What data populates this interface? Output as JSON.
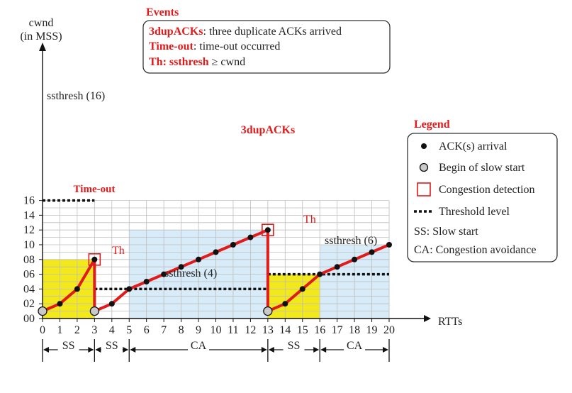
{
  "axes": {
    "y_title_line1": "cwnd",
    "y_title_line2": "(in MSS)",
    "x_title": "RTTs",
    "y_ticks": [
      "00",
      "02",
      "04",
      "06",
      "08",
      "10",
      "12",
      "14",
      "16"
    ],
    "x_ticks": [
      "0",
      "1",
      "2",
      "3",
      "4",
      "5",
      "6",
      "7",
      "8",
      "9",
      "10",
      "11",
      "12",
      "13",
      "14",
      "15",
      "16",
      "17",
      "18",
      "19",
      "20"
    ]
  },
  "events": {
    "title": "Events",
    "items": [
      {
        "key": "3dupACKs",
        "desc": ": three duplicate ACKs arrived"
      },
      {
        "key": "Time-out",
        "desc": ": time-out occurred"
      },
      {
        "key": "Th: ssthresh",
        "desc": " ≥  cwnd"
      }
    ]
  },
  "legend": {
    "title": "Legend",
    "items": [
      {
        "icon": "black-dot",
        "label": "ACK(s) arrival"
      },
      {
        "icon": "gray-circle",
        "label": "Begin of slow start"
      },
      {
        "icon": "red-square",
        "label": "Congestion detection"
      },
      {
        "icon": "dotted-line",
        "label": "Threshold level"
      },
      {
        "icon": "text",
        "key": "SS:",
        "label": "Slow start"
      },
      {
        "icon": "text",
        "key": "CA:",
        "label": "Congestion avoidance"
      }
    ]
  },
  "annotations": {
    "timeout": "Time-out",
    "dupacks": "3dupACKs",
    "th1": "Th",
    "th2": "Th",
    "ssthresh16": "ssthresh (16)",
    "ssthresh4": "ssthresh (4)",
    "ssthresh6": "ssthresh (6)"
  },
  "phases": [
    {
      "label": "SS",
      "from": 0,
      "to": 3
    },
    {
      "label": "SS",
      "from": 3,
      "to": 5
    },
    {
      "label": "CA",
      "from": 5,
      "to": 13
    },
    {
      "label": "SS",
      "from": 13,
      "to": 16
    },
    {
      "label": "CA",
      "from": 16,
      "to": 20
    }
  ],
  "chart_data": {
    "type": "line",
    "xlabel": "RTTs",
    "ylabel": "cwnd (in MSS)",
    "xlim": [
      0,
      20
    ],
    "ylim": [
      0,
      16
    ],
    "cwnd": [
      {
        "x": 0,
        "y": 1
      },
      {
        "x": 1,
        "y": 2
      },
      {
        "x": 2,
        "y": 4
      },
      {
        "x": 3,
        "y": 8
      },
      {
        "x": 3,
        "y": 1
      },
      {
        "x": 4,
        "y": 2
      },
      {
        "x": 5,
        "y": 4
      },
      {
        "x": 6,
        "y": 5
      },
      {
        "x": 7,
        "y": 6
      },
      {
        "x": 8,
        "y": 7
      },
      {
        "x": 9,
        "y": 8
      },
      {
        "x": 10,
        "y": 9
      },
      {
        "x": 11,
        "y": 10
      },
      {
        "x": 12,
        "y": 11
      },
      {
        "x": 13,
        "y": 12
      },
      {
        "x": 13,
        "y": 1
      },
      {
        "x": 14,
        "y": 2
      },
      {
        "x": 15,
        "y": 4
      },
      {
        "x": 16,
        "y": 6
      },
      {
        "x": 17,
        "y": 7
      },
      {
        "x": 18,
        "y": 8
      },
      {
        "x": 19,
        "y": 9
      },
      {
        "x": 20,
        "y": 10
      }
    ],
    "slow_start_begins": [
      {
        "x": 0,
        "y": 1
      },
      {
        "x": 3,
        "y": 1
      },
      {
        "x": 13,
        "y": 1
      }
    ],
    "congestion_detections": [
      {
        "x": 3,
        "y": 8
      },
      {
        "x": 13,
        "y": 12
      }
    ],
    "thresholds": [
      {
        "value": 16,
        "from": 0,
        "to": 3
      },
      {
        "value": 4,
        "from": 3,
        "to": 13
      },
      {
        "value": 6,
        "from": 13,
        "to": 20
      }
    ],
    "regions": [
      {
        "type": "slow-start",
        "from": 0,
        "to": 3,
        "top": 8,
        "color": "#f2e81a"
      },
      {
        "type": "slow-start",
        "from": 13,
        "to": 16,
        "top": 6,
        "color": "#f2e81a"
      },
      {
        "type": "congestion-avoidance",
        "from": 5,
        "to": 13,
        "top": 12,
        "color": "#d7ecf8"
      },
      {
        "type": "congestion-avoidance",
        "from": 16,
        "to": 20,
        "top": 10,
        "color": "#d7ecf8"
      }
    ],
    "colors": {
      "line": "#e01b1b",
      "dot": "#111111",
      "start": "#c9c9c9",
      "detect": "#e01b1b",
      "grid": "#bdbdbd"
    },
    "grid": true
  }
}
